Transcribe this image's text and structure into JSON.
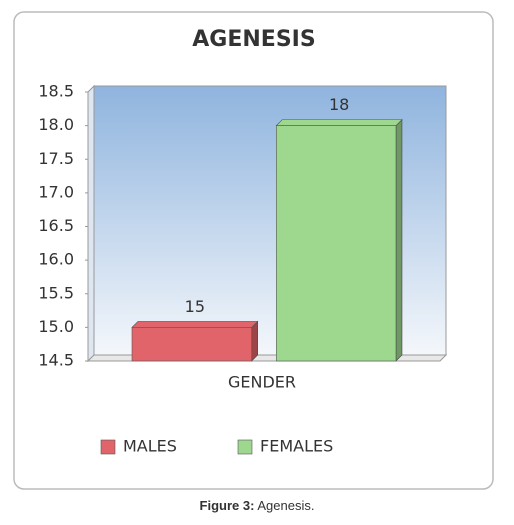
{
  "chart_data": {
    "type": "bar",
    "title": "AGENESIS",
    "x_label": "GENDER",
    "categories": [
      "GENDER"
    ],
    "series": [
      {
        "name": "MALES",
        "color": "#e06469",
        "values": [
          15
        ]
      },
      {
        "name": "FEMALES",
        "color": "#9ed88f",
        "values": [
          18
        ]
      }
    ],
    "ylim": [
      14.5,
      18.5
    ],
    "yticks": [
      14.5,
      {
        "value": 15,
        "label": "15.0"
      },
      15.5,
      {
        "value": 16,
        "label": "16.0"
      },
      16.5,
      {
        "value": 17,
        "label": "17.0"
      },
      17.5,
      {
        "value": 18,
        "label": "18.0"
      },
      18.5
    ],
    "grid": false,
    "legend": "bottom"
  },
  "caption": {
    "label": "Figure 3:",
    "text": "Agenesis."
  }
}
